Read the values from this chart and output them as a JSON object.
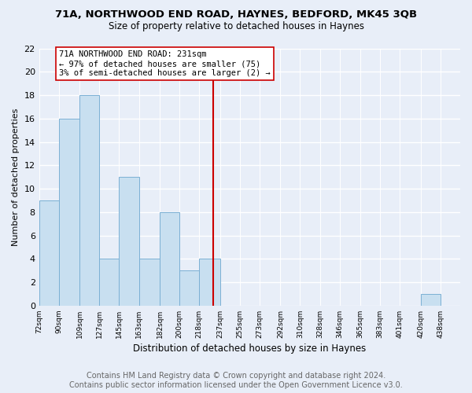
{
  "title": "71A, NORTHWOOD END ROAD, HAYNES, BEDFORD, MK45 3QB",
  "subtitle": "Size of property relative to detached houses in Haynes",
  "xlabel": "Distribution of detached houses by size in Haynes",
  "ylabel": "Number of detached properties",
  "bin_edges": [
    72,
    90,
    109,
    127,
    145,
    163,
    182,
    200,
    218,
    237,
    255,
    273,
    292,
    310,
    328,
    346,
    365,
    383,
    401,
    420,
    438,
    456
  ],
  "bin_labels": [
    "72sqm",
    "90sqm",
    "109sqm",
    "127sqm",
    "145sqm",
    "163sqm",
    "182sqm",
    "200sqm",
    "218sqm",
    "237sqm",
    "255sqm",
    "273sqm",
    "292sqm",
    "310sqm",
    "328sqm",
    "346sqm",
    "365sqm",
    "383sqm",
    "401sqm",
    "420sqm",
    "438sqm"
  ],
  "bar_values": [
    9,
    16,
    18,
    4,
    11,
    4,
    8,
    3,
    4,
    0,
    0,
    0,
    0,
    0,
    0,
    0,
    0,
    0,
    0,
    1,
    0
  ],
  "bar_color": "#c8dff0",
  "bar_edge_color": "#7bb0d4",
  "reference_line_x": 231,
  "reference_line_color": "#cc0000",
  "annotation_text": "71A NORTHWOOD END ROAD: 231sqm\n← 97% of detached houses are smaller (75)\n3% of semi-detached houses are larger (2) →",
  "ylim": [
    0,
    22
  ],
  "yticks": [
    0,
    2,
    4,
    6,
    8,
    10,
    12,
    14,
    16,
    18,
    20,
    22
  ],
  "footer_line1": "Contains HM Land Registry data © Crown copyright and database right 2024.",
  "footer_line2": "Contains public sector information licensed under the Open Government Licence v3.0.",
  "background_color": "#e8eef8",
  "plot_background_color": "#e8eef8",
  "title_fontsize": 9.5,
  "subtitle_fontsize": 8.5,
  "footer_fontsize": 7
}
